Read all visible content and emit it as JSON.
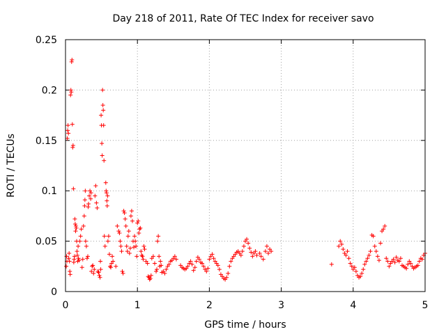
{
  "chart_data": {
    "type": "scatter",
    "title": "Day 218 of 2011, Rate Of TEC Index for receiver savo",
    "xlabel": "GPS time / hours",
    "ylabel": "ROTI / TECUs",
    "xlim": [
      0,
      5
    ],
    "ylim": [
      0,
      0.25
    ],
    "x_ticks": [
      0,
      1,
      2,
      3,
      4,
      5
    ],
    "x_tick_labels": [
      "0",
      "1",
      "2",
      "3",
      "4",
      "5"
    ],
    "y_ticks": [
      0,
      0.05,
      0.1,
      0.15,
      0.2,
      0.25
    ],
    "y_tick_labels": [
      "0",
      "0.05",
      "0.1",
      "0.15",
      "0.2",
      "0.25"
    ],
    "grid": true,
    "legend": "none",
    "marker": "+",
    "series": [
      {
        "color": "#ff0000",
        "points": [
          [
            0.01,
            0.025
          ],
          [
            0.015,
            0.035
          ],
          [
            0.02,
            0.03
          ],
          [
            0.025,
            0.152
          ],
          [
            0.03,
            0.16
          ],
          [
            0.035,
            0.165
          ],
          [
            0.04,
            0.157
          ],
          [
            0.045,
            0.033
          ],
          [
            0.05,
            0.038
          ],
          [
            0.055,
            0.03
          ],
          [
            0.06,
            0.02
          ],
          [
            0.065,
            0.017
          ],
          [
            0.07,
            0.195
          ],
          [
            0.075,
            0.2
          ],
          [
            0.08,
            0.198
          ],
          [
            0.085,
            0.228
          ],
          [
            0.09,
            0.23
          ],
          [
            0.095,
            0.166
          ],
          [
            0.1,
            0.143
          ],
          [
            0.105,
            0.145
          ],
          [
            0.11,
            0.102
          ],
          [
            0.115,
            0.029
          ],
          [
            0.12,
            0.032
          ],
          [
            0.125,
            0.035
          ],
          [
            0.13,
            0.072
          ],
          [
            0.135,
            0.067
          ],
          [
            0.14,
            0.06
          ],
          [
            0.145,
            0.065
          ],
          [
            0.15,
            0.063
          ],
          [
            0.155,
            0.05
          ],
          [
            0.16,
            0.04
          ],
          [
            0.165,
            0.036
          ],
          [
            0.17,
            0.03
          ],
          [
            0.175,
            0.045
          ],
          [
            0.18,
            0.033
          ],
          [
            0.19,
            0.031
          ],
          [
            0.2,
            0.05
          ],
          [
            0.21,
            0.055
          ],
          [
            0.22,
            0.062
          ],
          [
            0.23,
            0.024
          ],
          [
            0.24,
            0.032
          ],
          [
            0.25,
            0.065
          ],
          [
            0.26,
            0.075
          ],
          [
            0.265,
            0.085
          ],
          [
            0.27,
            0.091
          ],
          [
            0.275,
            0.1
          ],
          [
            0.28,
            0.05
          ],
          [
            0.29,
            0.045
          ],
          [
            0.3,
            0.033
          ],
          [
            0.31,
            0.035
          ],
          [
            0.315,
            0.084
          ],
          [
            0.32,
            0.087
          ],
          [
            0.33,
            0.095
          ],
          [
            0.34,
            0.1
          ],
          [
            0.35,
            0.092
          ],
          [
            0.355,
            0.098
          ],
          [
            0.36,
            0.02
          ],
          [
            0.37,
            0.025
          ],
          [
            0.38,
            0.026
          ],
          [
            0.39,
            0.018
          ],
          [
            0.4,
            0.022
          ],
          [
            0.41,
            0.095
          ],
          [
            0.42,
            0.105
          ],
          [
            0.43,
            0.088
          ],
          [
            0.44,
            0.083
          ],
          [
            0.45,
            0.02
          ],
          [
            0.46,
            0.019
          ],
          [
            0.47,
            0.016
          ],
          [
            0.48,
            0.014
          ],
          [
            0.485,
            0.03
          ],
          [
            0.49,
            0.022
          ],
          [
            0.495,
            0.175
          ],
          [
            0.5,
            0.165
          ],
          [
            0.505,
            0.147
          ],
          [
            0.51,
            0.135
          ],
          [
            0.515,
            0.2
          ],
          [
            0.52,
            0.185
          ],
          [
            0.525,
            0.18
          ],
          [
            0.53,
            0.165
          ],
          [
            0.535,
            0.13
          ],
          [
            0.54,
            0.055
          ],
          [
            0.55,
            0.045
          ],
          [
            0.56,
            0.108
          ],
          [
            0.565,
            0.1
          ],
          [
            0.57,
            0.098
          ],
          [
            0.575,
            0.09
          ],
          [
            0.58,
            0.085
          ],
          [
            0.585,
            0.095
          ],
          [
            0.59,
            0.05
          ],
          [
            0.6,
            0.055
          ],
          [
            0.61,
            0.037
          ],
          [
            0.62,
            0.025
          ],
          [
            0.63,
            0.024
          ],
          [
            0.64,
            0.028
          ],
          [
            0.65,
            0.035
          ],
          [
            0.66,
            0.03
          ],
          [
            0.7,
            0.025
          ],
          [
            0.72,
            0.065
          ],
          [
            0.74,
            0.06
          ],
          [
            0.75,
            0.058
          ],
          [
            0.76,
            0.05
          ],
          [
            0.77,
            0.045
          ],
          [
            0.78,
            0.04
          ],
          [
            0.79,
            0.02
          ],
          [
            0.8,
            0.018
          ],
          [
            0.81,
            0.08
          ],
          [
            0.82,
            0.078
          ],
          [
            0.83,
            0.072
          ],
          [
            0.84,
            0.065
          ],
          [
            0.85,
            0.045
          ],
          [
            0.86,
            0.04
          ],
          [
            0.87,
            0.055
          ],
          [
            0.88,
            0.06
          ],
          [
            0.89,
            0.038
          ],
          [
            0.9,
            0.043
          ],
          [
            0.91,
            0.075
          ],
          [
            0.92,
            0.08
          ],
          [
            0.93,
            0.07
          ],
          [
            0.94,
            0.05
          ],
          [
            0.95,
            0.044
          ],
          [
            0.96,
            0.055
          ],
          [
            0.97,
            0.05
          ],
          [
            0.98,
            0.045
          ],
          [
            0.99,
            0.035
          ],
          [
            1.0,
            0.068
          ],
          [
            1.01,
            0.07
          ],
          [
            1.02,
            0.058
          ],
          [
            1.03,
            0.062
          ],
          [
            1.04,
            0.063
          ],
          [
            1.05,
            0.04
          ],
          [
            1.06,
            0.036
          ],
          [
            1.07,
            0.035
          ],
          [
            1.08,
            0.032
          ],
          [
            1.09,
            0.045
          ],
          [
            1.1,
            0.042
          ],
          [
            1.12,
            0.03
          ],
          [
            1.14,
            0.028
          ],
          [
            1.15,
            0.015
          ],
          [
            1.16,
            0.014
          ],
          [
            1.17,
            0.012
          ],
          [
            1.18,
            0.013
          ],
          [
            1.19,
            0.016
          ],
          [
            1.2,
            0.033
          ],
          [
            1.22,
            0.035
          ],
          [
            1.24,
            0.028
          ],
          [
            1.26,
            0.02
          ],
          [
            1.27,
            0.022
          ],
          [
            1.28,
            0.05
          ],
          [
            1.29,
            0.055
          ],
          [
            1.3,
            0.035
          ],
          [
            1.31,
            0.025
          ],
          [
            1.32,
            0.03
          ],
          [
            1.33,
            0.026
          ],
          [
            1.34,
            0.019
          ],
          [
            1.36,
            0.02
          ],
          [
            1.38,
            0.018
          ],
          [
            1.4,
            0.022
          ],
          [
            1.42,
            0.025
          ],
          [
            1.44,
            0.027
          ],
          [
            1.46,
            0.03
          ],
          [
            1.48,
            0.031
          ],
          [
            1.5,
            0.033
          ],
          [
            1.52,
            0.035
          ],
          [
            1.54,
            0.032
          ],
          [
            1.6,
            0.026
          ],
          [
            1.62,
            0.024
          ],
          [
            1.64,
            0.023
          ],
          [
            1.66,
            0.022
          ],
          [
            1.68,
            0.023
          ],
          [
            1.7,
            0.025
          ],
          [
            1.72,
            0.028
          ],
          [
            1.74,
            0.03
          ],
          [
            1.76,
            0.027
          ],
          [
            1.78,
            0.021
          ],
          [
            1.8,
            0.024
          ],
          [
            1.82,
            0.03
          ],
          [
            1.84,
            0.034
          ],
          [
            1.86,
            0.032
          ],
          [
            1.88,
            0.029
          ],
          [
            1.9,
            0.028
          ],
          [
            1.92,
            0.025
          ],
          [
            1.94,
            0.022
          ],
          [
            1.96,
            0.02
          ],
          [
            1.98,
            0.023
          ],
          [
            2.0,
            0.032
          ],
          [
            2.02,
            0.035
          ],
          [
            2.04,
            0.037
          ],
          [
            2.06,
            0.033
          ],
          [
            2.08,
            0.03
          ],
          [
            2.1,
            0.028
          ],
          [
            2.12,
            0.026
          ],
          [
            2.14,
            0.022
          ],
          [
            2.16,
            0.017
          ],
          [
            2.18,
            0.015
          ],
          [
            2.2,
            0.013
          ],
          [
            2.22,
            0.012
          ],
          [
            2.24,
            0.014
          ],
          [
            2.26,
            0.018
          ],
          [
            2.28,
            0.025
          ],
          [
            2.3,
            0.03
          ],
          [
            2.32,
            0.033
          ],
          [
            2.34,
            0.035
          ],
          [
            2.36,
            0.037
          ],
          [
            2.38,
            0.039
          ],
          [
            2.4,
            0.04
          ],
          [
            2.42,
            0.038
          ],
          [
            2.44,
            0.036
          ],
          [
            2.46,
            0.04
          ],
          [
            2.48,
            0.045
          ],
          [
            2.5,
            0.05
          ],
          [
            2.52,
            0.052
          ],
          [
            2.54,
            0.048
          ],
          [
            2.56,
            0.043
          ],
          [
            2.58,
            0.039
          ],
          [
            2.6,
            0.035
          ],
          [
            2.62,
            0.038
          ],
          [
            2.64,
            0.04
          ],
          [
            2.66,
            0.036
          ],
          [
            2.7,
            0.038
          ],
          [
            2.72,
            0.035
          ],
          [
            2.75,
            0.032
          ],
          [
            2.78,
            0.04
          ],
          [
            2.8,
            0.045
          ],
          [
            2.82,
            0.038
          ],
          [
            2.84,
            0.042
          ],
          [
            2.86,
            0.04
          ],
          [
            3.7,
            0.027
          ],
          [
            3.8,
            0.045
          ],
          [
            3.82,
            0.05
          ],
          [
            3.84,
            0.047
          ],
          [
            3.86,
            0.042
          ],
          [
            3.88,
            0.038
          ],
          [
            3.9,
            0.036
          ],
          [
            3.92,
            0.04
          ],
          [
            3.94,
            0.033
          ],
          [
            3.96,
            0.028
          ],
          [
            3.98,
            0.025
          ],
          [
            4.0,
            0.022
          ],
          [
            4.02,
            0.024
          ],
          [
            4.04,
            0.02
          ],
          [
            4.06,
            0.016
          ],
          [
            4.08,
            0.014
          ],
          [
            4.1,
            0.015
          ],
          [
            4.12,
            0.018
          ],
          [
            4.14,
            0.022
          ],
          [
            4.16,
            0.027
          ],
          [
            4.18,
            0.03
          ],
          [
            4.2,
            0.033
          ],
          [
            4.22,
            0.036
          ],
          [
            4.24,
            0.04
          ],
          [
            4.26,
            0.056
          ],
          [
            4.28,
            0.055
          ],
          [
            4.3,
            0.045
          ],
          [
            4.32,
            0.04
          ],
          [
            4.34,
            0.035
          ],
          [
            4.36,
            0.031
          ],
          [
            4.38,
            0.048
          ],
          [
            4.4,
            0.06
          ],
          [
            4.42,
            0.062
          ],
          [
            4.44,
            0.065
          ],
          [
            4.46,
            0.033
          ],
          [
            4.48,
            0.03
          ],
          [
            4.5,
            0.025
          ],
          [
            4.52,
            0.028
          ],
          [
            4.54,
            0.03
          ],
          [
            4.56,
            0.032
          ],
          [
            4.58,
            0.029
          ],
          [
            4.6,
            0.034
          ],
          [
            4.62,
            0.031
          ],
          [
            4.64,
            0.03
          ],
          [
            4.66,
            0.033
          ],
          [
            4.68,
            0.026
          ],
          [
            4.7,
            0.025
          ],
          [
            4.72,
            0.024
          ],
          [
            4.74,
            0.023
          ],
          [
            4.76,
            0.027
          ],
          [
            4.78,
            0.03
          ],
          [
            4.8,
            0.028
          ],
          [
            4.82,
            0.025
          ],
          [
            4.84,
            0.023
          ],
          [
            4.86,
            0.024
          ],
          [
            4.88,
            0.025
          ],
          [
            4.9,
            0.026
          ],
          [
            4.92,
            0.03
          ],
          [
            4.94,
            0.033
          ],
          [
            4.96,
            0.032
          ],
          [
            4.98,
            0.036
          ],
          [
            5.0,
            0.038
          ]
        ]
      }
    ]
  }
}
